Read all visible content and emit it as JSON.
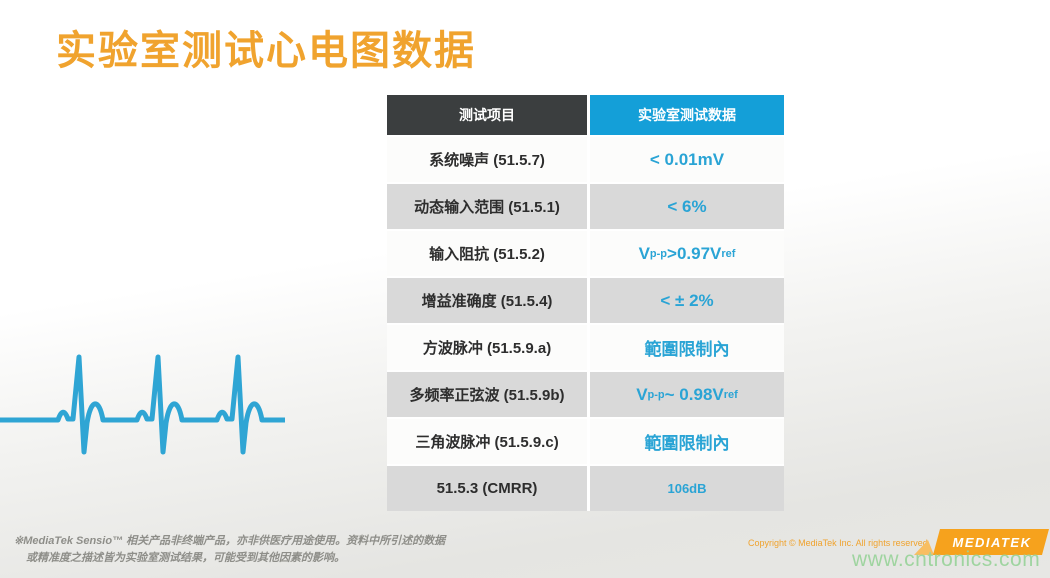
{
  "slide": {
    "title": "实验室测试心电图数据"
  },
  "colors": {
    "accent_orange": "#F0A32E",
    "header_dark": "#3B3E3F",
    "header_blue": "#149FD8",
    "value_blue": "#2AA4D5",
    "row_gray": "#D9D9D9",
    "watermark_green": "#9CD49D",
    "ecg_blue": "#2FA5D4",
    "logo_orange": "#F6A21D"
  },
  "table": {
    "headers": [
      {
        "label": "测试项目"
      },
      {
        "label": "实验室测试数据"
      }
    ],
    "rows": [
      {
        "item": "系统噪声 (51.5.7)",
        "value": [
          {
            "t": "< 0.01mV"
          }
        ]
      },
      {
        "item": "动态输入范围 (51.5.1)",
        "value": [
          {
            "t": "< 6%"
          }
        ]
      },
      {
        "item": "输入阻抗 (51.5.2)",
        "value": [
          {
            "t": "V"
          },
          {
            "t": "p-p",
            "sub": true
          },
          {
            "t": " >0.97V"
          },
          {
            "t": "ref",
            "sub": true
          }
        ]
      },
      {
        "item": "增益准确度 (51.5.4)",
        "value": [
          {
            "t": "< ± 2%"
          }
        ]
      },
      {
        "item": "方波脉冲 (51.5.9.a)",
        "value": [
          {
            "t": "範圍限制內"
          }
        ]
      },
      {
        "item": "多频率正弦波 (51.5.9b)",
        "value": [
          {
            "t": "V"
          },
          {
            "t": "p-p",
            "sub": true
          },
          {
            "t": " ~ 0.98V"
          },
          {
            "t": "ref",
            "sub": true
          }
        ]
      },
      {
        "item": "三角波脉冲 (51.5.9.c)",
        "value": [
          {
            "t": "範圍限制內"
          }
        ]
      },
      {
        "item": "51.5.3 (CMRR)",
        "value": [
          {
            "t": "106dB"
          }
        ],
        "small": true
      }
    ]
  },
  "footer": {
    "disclaimer_line1": "※MediaTek Sensio™ 相关产品非终端产品，亦非供医疗用途使用。资料中所引述的数据",
    "disclaimer_line2": "或精准度之描述皆为实验室测试结果，可能受到其他因素的影响。",
    "copyright": "Copyright © MediaTek Inc. All rights reserved",
    "logo_text": "MEDIATEK",
    "watermark": "www.cntronics.com"
  }
}
